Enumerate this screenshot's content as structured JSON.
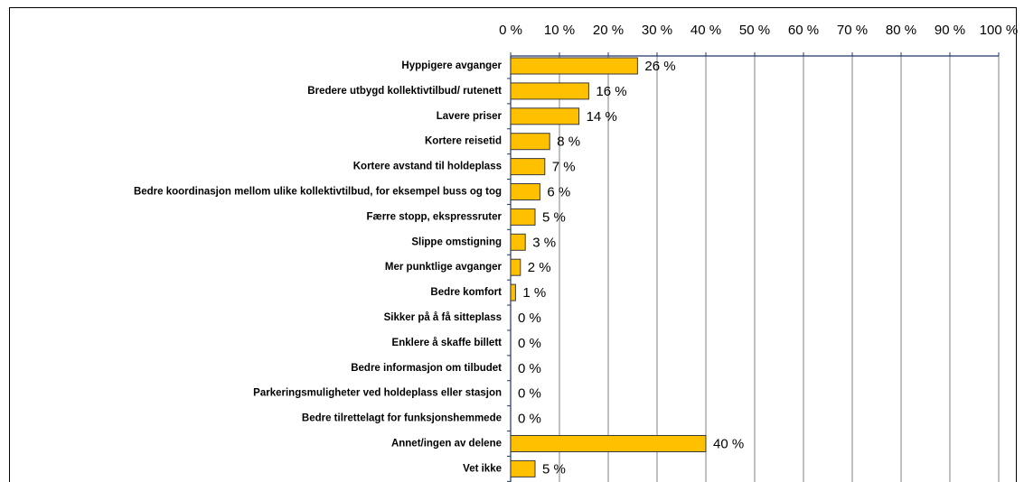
{
  "chart_data": {
    "type": "barh",
    "categories": [
      "Hyppigere avganger",
      "Bredere utbygd kollektivtilbud/ rutenett",
      "Lavere priser",
      "Kortere reisetid",
      "Kortere avstand til holdeplass",
      "Bedre koordinasjon mellom ulike kollektivtilbud, for eksempel buss og tog",
      "Færre stopp, ekspressruter",
      "Slippe omstigning",
      "Mer punktlige avganger",
      "Bedre komfort",
      "Sikker på å få sitteplass",
      "Enklere å skaffe billett",
      "Bedre informasjon om tilbudet",
      "Parkeringsmuligheter ved holdeplass eller stasjon",
      "Bedre tilrettelagt for funksjonshemmede",
      "Annet/ingen av delene",
      "Vet ikke"
    ],
    "values": [
      26,
      16,
      14,
      8,
      7,
      6,
      5,
      3,
      2,
      1,
      0,
      0,
      0,
      0,
      0,
      40,
      5
    ],
    "value_labels": [
      "26 %",
      "16 %",
      "14 %",
      "8 %",
      "7 %",
      "6 %",
      "5 %",
      "3 %",
      "2 %",
      "1 %",
      "0 %",
      "0 %",
      "0 %",
      "0 %",
      "0 %",
      "40 %",
      "5 %"
    ],
    "color": "#ffc000",
    "xlim": [
      0,
      100
    ],
    "xticks": [
      {
        "value": 0,
        "label": "0 %"
      },
      {
        "value": 10,
        "label": "10 %"
      },
      {
        "value": 20,
        "label": "20 %"
      },
      {
        "value": 30,
        "label": "30 %"
      },
      {
        "value": 40,
        "label": "40 %"
      },
      {
        "value": 50,
        "label": "50 %"
      },
      {
        "value": 60,
        "label": "60 %"
      },
      {
        "value": 70,
        "label": "70 %"
      },
      {
        "value": 80,
        "label": "80 %"
      },
      {
        "value": 90,
        "label": "90 %"
      },
      {
        "value": 100,
        "label": "100 %"
      }
    ],
    "grid": true
  }
}
